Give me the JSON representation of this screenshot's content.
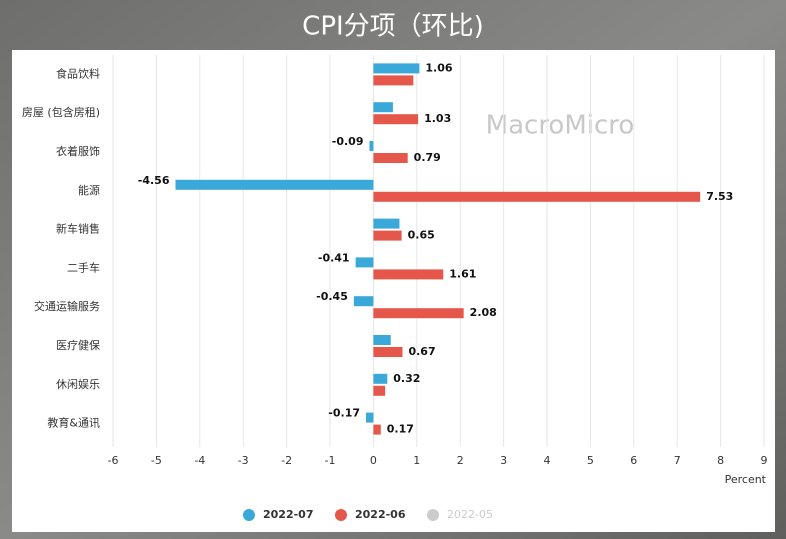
{
  "chart_data": {
    "type": "bar",
    "orientation": "horizontal",
    "title": "CPI分项（环比)",
    "x_label": "Percent",
    "watermark": "MacroMicro",
    "categories": [
      "食品饮料",
      "房屋 (包含房租)",
      "衣着服饰",
      "能源",
      "新车销售",
      "二手车",
      "交通运输服务",
      "医疗健保",
      "休闲娱乐",
      "教育&通讯"
    ],
    "series": [
      {
        "name": "2022-07",
        "color": "#3aa8d8",
        "values": [
          1.06,
          0.45,
          -0.09,
          -4.56,
          0.6,
          -0.41,
          -0.45,
          0.4,
          0.32,
          -0.17
        ],
        "value_labels": [
          "1.06",
          null,
          "-0.09",
          "-4.56",
          null,
          "-0.41",
          "-0.45",
          null,
          "0.32",
          "-0.17"
        ]
      },
      {
        "name": "2022-06",
        "color": "#e5574a",
        "values": [
          0.92,
          1.03,
          0.79,
          7.53,
          0.65,
          1.61,
          2.08,
          0.67,
          0.27,
          0.17
        ],
        "value_labels": [
          null,
          "1.03",
          "0.79",
          "7.53",
          "0.65",
          "1.61",
          "2.08",
          "0.67",
          null,
          "0.17"
        ]
      },
      {
        "name": "2022-05",
        "color": "#cccccc",
        "hidden": true,
        "values": [
          null,
          null,
          null,
          null,
          null,
          null,
          null,
          null,
          null,
          null
        ]
      }
    ],
    "xlim": [
      -6,
      9
    ],
    "xticks": [
      -6,
      -5,
      -4,
      -3,
      -2,
      -1,
      0,
      1,
      2,
      3,
      4,
      5,
      6,
      7,
      8,
      9
    ],
    "grid": true
  }
}
